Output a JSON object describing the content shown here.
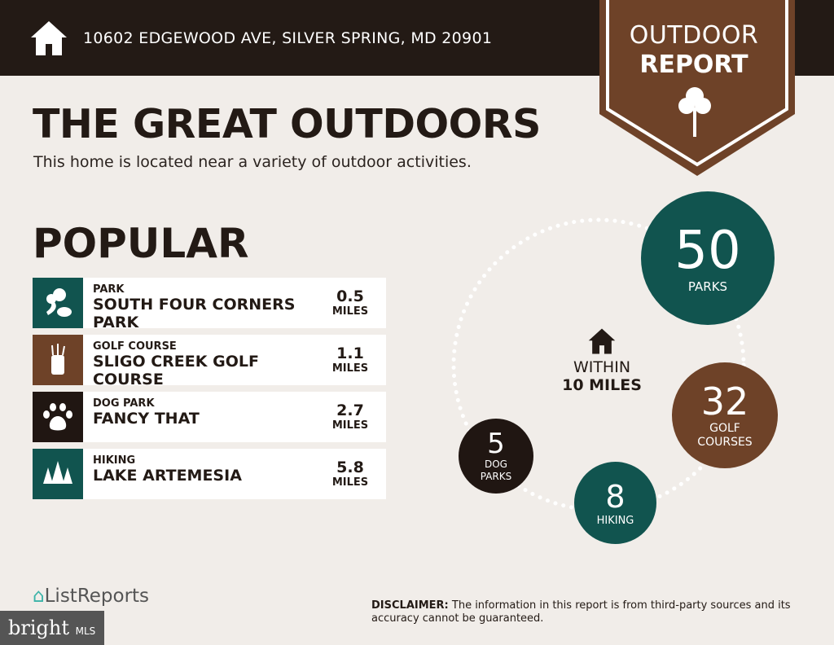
{
  "header": {
    "address": "10602 EDGEWOOD AVE, SILVER SPRING, MD 20901",
    "icon": "home-icon"
  },
  "badge": {
    "line1": "OUTDOOR",
    "line2": "REPORT",
    "icon": "tree-icon"
  },
  "title": "THE GREAT OUTDOORS",
  "subtitle": "This home is located near a variety of outdoor activities.",
  "popular": {
    "heading": "POPULAR",
    "items": [
      {
        "category": "PARK",
        "name": "SOUTH FOUR CORNERS PARK",
        "distance": "0.5",
        "unit": "MILES",
        "icon": "park-icon",
        "color": "#11544f"
      },
      {
        "category": "GOLF COURSE",
        "name": "SLIGO CREEK GOLF COURSE",
        "distance": "1.1",
        "unit": "MILES",
        "icon": "golf-bag-icon",
        "color": "#6e4228"
      },
      {
        "category": "DOG PARK",
        "name": "FANCY THAT",
        "distance": "2.7",
        "unit": "MILES",
        "icon": "paw-icon",
        "color": "#201612"
      },
      {
        "category": "HIKING",
        "name": "LAKE ARTEMESIA",
        "distance": "5.8",
        "unit": "MILES",
        "icon": "pine-trees-icon",
        "color": "#11544f"
      }
    ]
  },
  "within": {
    "line1": "WITHIN",
    "line2": "10 MILES"
  },
  "counts": [
    {
      "value": "50",
      "label": "PARKS",
      "color": "#11544f"
    },
    {
      "value": "32",
      "label": "GOLF COURSES",
      "color": "#6e4228"
    },
    {
      "value": "8",
      "label": "HIKING",
      "color": "#11544f"
    },
    {
      "value": "5",
      "label": "DOG PARKS",
      "color": "#201612"
    }
  ],
  "footer": {
    "logo": "ListReports",
    "bright": "bright",
    "mls": "MLS",
    "disclaimer_label": "DISCLAIMER:",
    "disclaimer": " The information in this report is from third-party sources and its accuracy cannot be guaranteed."
  }
}
